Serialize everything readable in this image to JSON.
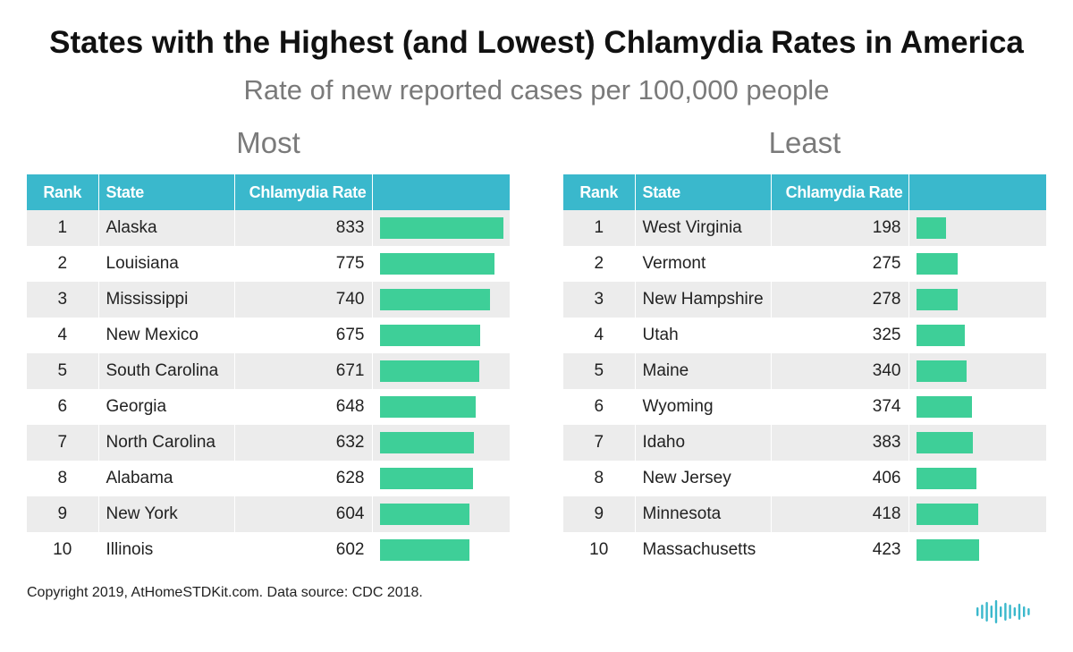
{
  "title": "States with the Highest (and Lowest) Chlamydia Rates in America",
  "subtitle": "Rate of new reported cases per 100,000 people",
  "columns": {
    "rank": "Rank",
    "state": "State",
    "rate": "Chlamydia Rate"
  },
  "footer": "Copyright 2019, AtHomeSTDKit.com. Data source: CDC 2018.",
  "colors": {
    "header_bg": "#3ab8cc",
    "bar": "#3ecf98",
    "stripe": "#ececec",
    "logo": "#3ab8cc"
  },
  "logo_icon": "sound-wave-logo",
  "chart_data": [
    {
      "type": "table",
      "title": "Most",
      "columns": [
        "Rank",
        "State",
        "Chlamydia Rate"
      ],
      "bar_max": 833,
      "rows": [
        {
          "rank": "1",
          "state": "Alaska",
          "rate": 833
        },
        {
          "rank": "2",
          "state": "Louisiana",
          "rate": 775
        },
        {
          "rank": "3",
          "state": "Mississippi",
          "rate": 740
        },
        {
          "rank": "4",
          "state": "New Mexico",
          "rate": 675
        },
        {
          "rank": "5",
          "state": "South Carolina",
          "rate": 671
        },
        {
          "rank": "6",
          "state": "Georgia",
          "rate": 648
        },
        {
          "rank": "7",
          "state": "North Carolina",
          "rate": 632
        },
        {
          "rank": "8",
          "state": "Alabama",
          "rate": 628
        },
        {
          "rank": "9",
          "state": "New York",
          "rate": 604
        },
        {
          "rank": "10",
          "state": "Illinois",
          "rate": 602
        }
      ]
    },
    {
      "type": "table",
      "title": "Least",
      "columns": [
        "Rank",
        "State",
        "Chlamydia Rate"
      ],
      "bar_max": 833,
      "rows": [
        {
          "rank": "1",
          "state": "West Virginia",
          "rate": 198
        },
        {
          "rank": "2",
          "state": "Vermont",
          "rate": 275
        },
        {
          "rank": "3",
          "state": "New Hampshire",
          "rate": 278
        },
        {
          "rank": "4",
          "state": "Utah",
          "rate": 325
        },
        {
          "rank": "5",
          "state": "Maine",
          "rate": 340
        },
        {
          "rank": "6",
          "state": "Wyoming",
          "rate": 374
        },
        {
          "rank": "7",
          "state": "Idaho",
          "rate": 383
        },
        {
          "rank": "8",
          "state": "New Jersey",
          "rate": 406
        },
        {
          "rank": "9",
          "state": "Minnesota",
          "rate": 418
        },
        {
          "rank": "10",
          "state": "Massachusetts",
          "rate": 423
        }
      ]
    }
  ]
}
